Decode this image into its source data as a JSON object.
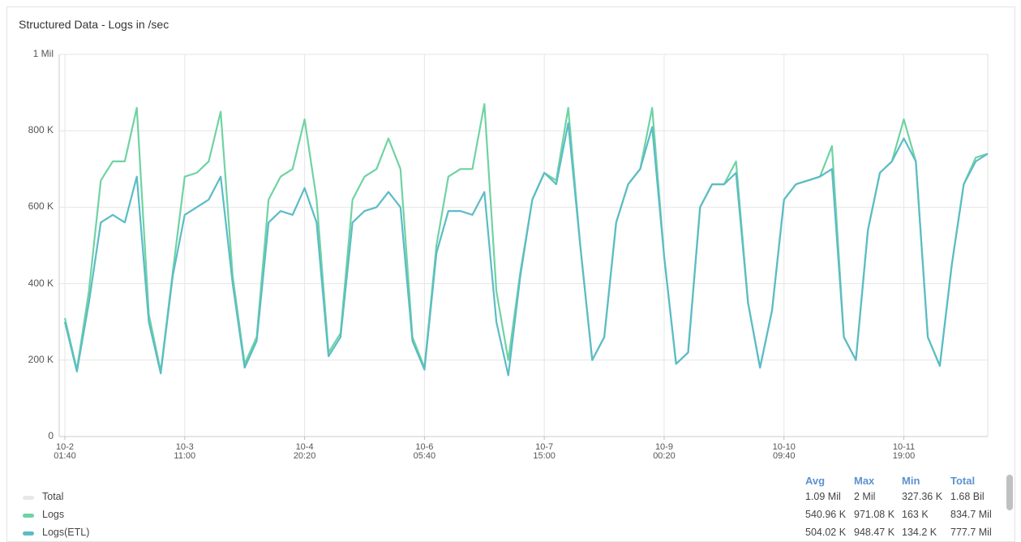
{
  "chart_data": {
    "type": "line",
    "title": "Structured Data - Logs in /sec",
    "categories": [
      "10-2\n01:40",
      null,
      null,
      null,
      null,
      null,
      null,
      null,
      null,
      null,
      "10-3\n11:00",
      null,
      null,
      null,
      null,
      null,
      null,
      null,
      null,
      null,
      "10-4\n20:20",
      null,
      null,
      null,
      null,
      null,
      null,
      null,
      null,
      null,
      "10-6\n05:40",
      null,
      null,
      null,
      null,
      null,
      null,
      null,
      null,
      null,
      "10-7\n15:00",
      null,
      null,
      null,
      null,
      null,
      null,
      null,
      null,
      null,
      "10-9\n00:20",
      null,
      null,
      null,
      null,
      null,
      null,
      null,
      null,
      null,
      "10-10\n09:40",
      null,
      null,
      null,
      null,
      null,
      null,
      null,
      null,
      null,
      "10-11\n19:00",
      null,
      null,
      null,
      null,
      null,
      null,
      null
    ],
    "series": [
      {
        "name": "Logs",
        "color": "#6fd3a2",
        "values": [
          310000,
          175000,
          380000,
          670000,
          720000,
          720000,
          860000,
          320000,
          170000,
          430000,
          680000,
          690000,
          720000,
          850000,
          420000,
          190000,
          260000,
          620000,
          680000,
          700000,
          830000,
          620000,
          220000,
          270000,
          620000,
          680000,
          700000,
          780000,
          700000,
          260000,
          180000,
          500000,
          680000,
          700000,
          700000,
          870000,
          380000,
          200000,
          430000,
          620000,
          690000,
          670000,
          860000,
          500000,
          200000,
          260000,
          560000,
          660000,
          700000,
          860000,
          470000,
          190000,
          220000,
          600000,
          660000,
          660000,
          720000,
          350000,
          180000,
          330000,
          620000,
          660000,
          670000,
          680000,
          760000,
          260000,
          200000,
          540000,
          690000,
          720000,
          830000,
          720000,
          260000,
          185000,
          450000,
          660000,
          730000,
          740000
        ],
        "stats": [
          "540.96 K",
          "971.08 K",
          "163 K",
          "834.7 Mil"
        ]
      },
      {
        "name": "Logs(ETL)",
        "color": "#5bbcc6",
        "values": [
          300000,
          170000,
          350000,
          560000,
          580000,
          560000,
          680000,
          300000,
          165000,
          420000,
          580000,
          600000,
          620000,
          680000,
          400000,
          180000,
          250000,
          560000,
          590000,
          580000,
          650000,
          560000,
          210000,
          260000,
          560000,
          590000,
          600000,
          640000,
          600000,
          250000,
          175000,
          480000,
          590000,
          590000,
          580000,
          640000,
          300000,
          160000,
          420000,
          620000,
          690000,
          660000,
          820000,
          500000,
          200000,
          260000,
          560000,
          660000,
          700000,
          810000,
          470000,
          190000,
          220000,
          600000,
          660000,
          660000,
          690000,
          350000,
          180000,
          330000,
          620000,
          660000,
          670000,
          680000,
          700000,
          260000,
          200000,
          540000,
          690000,
          720000,
          780000,
          720000,
          260000,
          185000,
          450000,
          660000,
          720000,
          740000
        ],
        "stats": [
          "504.02 K",
          "948.47 K",
          "134.2 K",
          "777.7 Mil"
        ]
      }
    ],
    "total": {
      "name": "Total",
      "color": "#e8e8e8",
      "stats": [
        "1.09 Mil",
        "2 Mil",
        "327.36 K",
        "1.68 Bil"
      ]
    },
    "stats_columns": [
      "Avg",
      "Max",
      "Min",
      "Total"
    ],
    "ylim": [
      0,
      1000000
    ],
    "yticks": [
      0,
      {
        "value": 200000,
        "label": "200 K"
      },
      {
        "value": 400000,
        "label": "400 K"
      },
      {
        "value": 600000,
        "label": "600 K"
      },
      {
        "value": 800000,
        "label": "800 K"
      },
      {
        "value": 1000000,
        "label": "1 Mil"
      }
    ],
    "grid": true
  }
}
